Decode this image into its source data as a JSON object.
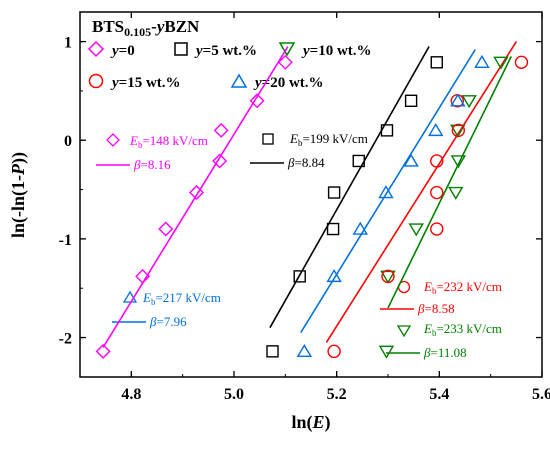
{
  "chart_data": {
    "type": "scatter",
    "title": {
      "base": "BTS",
      "sub": "0.105",
      "rest": "-",
      "var": "y",
      "tail": "BZN"
    },
    "xlabel": {
      "pre": "ln(",
      "var": "E",
      "post": ")"
    },
    "ylabel": {
      "pre": "ln(-ln(1-",
      "var": "P",
      "post": "))"
    },
    "xlim": [
      4.7,
      5.6
    ],
    "ylim": [
      -2.4,
      1.3
    ],
    "xticks": [
      "4.8",
      "5.0",
      "5.2",
      "5.4",
      "5.6"
    ],
    "xtick_values": [
      4.8,
      5.0,
      5.2,
      5.4,
      5.6
    ],
    "yticks": [
      "-2",
      "-1",
      "0",
      "1"
    ],
    "ytick_values": [
      -2,
      -1,
      0,
      1
    ],
    "grid": false,
    "legend_position": "top-left",
    "series": [
      {
        "name_var": "y",
        "name_rest": "=0",
        "marker": "diamond",
        "color": "#ff00ff",
        "points": [
          [
            4.745,
            -2.14
          ],
          [
            4.822,
            -1.38
          ],
          [
            4.867,
            -0.9
          ],
          [
            4.927,
            -0.53
          ],
          [
            4.972,
            -0.21
          ],
          [
            4.975,
            0.1
          ],
          [
            5.045,
            0.4
          ],
          [
            5.1,
            0.79
          ]
        ],
        "fit": [
          [
            4.745,
            -2.1
          ],
          [
            5.105,
            0.95
          ]
        ],
        "annotation": {
          "eb_var": "E",
          "eb_sub": "b",
          "eb_value": "=148 kV/cm",
          "beta_var": "β",
          "beta_value": "=8.16"
        }
      },
      {
        "name_var": "y",
        "name_rest": "=5 wt.%",
        "marker": "square",
        "color": "#000000",
        "points": [
          [
            5.075,
            -2.14
          ],
          [
            5.128,
            -1.38
          ],
          [
            5.193,
            -0.9
          ],
          [
            5.195,
            -0.53
          ],
          [
            5.243,
            -0.21
          ],
          [
            5.298,
            0.1
          ],
          [
            5.345,
            0.4
          ],
          [
            5.395,
            0.79
          ]
        ],
        "fit": [
          [
            5.07,
            -1.9
          ],
          [
            5.38,
            0.95
          ]
        ],
        "annotation": {
          "eb_var": "E",
          "eb_sub": "b",
          "eb_value": "=199 kV/cm",
          "beta_var": "β",
          "beta_value": "=8.84"
        }
      },
      {
        "name_var": "y",
        "name_rest": "=10 wt.%",
        "marker": "triangle-down",
        "color": "#008000",
        "points": [
          [
            5.297,
            -2.14
          ],
          [
            5.3,
            -1.38
          ],
          [
            5.355,
            -0.9
          ],
          [
            5.432,
            -0.53
          ],
          [
            5.437,
            -0.21
          ],
          [
            5.436,
            0.1
          ],
          [
            5.458,
            0.4
          ],
          [
            5.52,
            0.79
          ]
        ],
        "fit": [
          [
            5.3,
            -1.7
          ],
          [
            5.54,
            0.85
          ]
        ],
        "annotation": {
          "eb_var": "E",
          "eb_sub": "b",
          "eb_value": "=233 kV/cm",
          "beta_var": "β",
          "beta_value": "=11.08"
        }
      },
      {
        "name_var": "y",
        "name_rest": "=15 wt.%",
        "marker": "circle",
        "color": "#ff0000",
        "points": [
          [
            5.195,
            -2.14
          ],
          [
            5.3,
            -1.38
          ],
          [
            5.395,
            -0.9
          ],
          [
            5.395,
            -0.53
          ],
          [
            5.395,
            -0.21
          ],
          [
            5.437,
            0.1
          ],
          [
            5.435,
            0.4
          ],
          [
            5.56,
            0.79
          ]
        ],
        "fit": [
          [
            5.18,
            -2.05
          ],
          [
            5.55,
            1.0
          ]
        ],
        "annotation": {
          "eb_var": "E",
          "eb_sub": "b",
          "eb_value": "=232 kV/cm",
          "beta_var": "β",
          "beta_value": "=8.58"
        }
      },
      {
        "name_var": "y",
        "name_rest": "=20 wt.%",
        "marker": "triangle-up",
        "color": "#0070dd",
        "points": [
          [
            5.137,
            -2.14
          ],
          [
            5.195,
            -1.38
          ],
          [
            5.246,
            -0.9
          ],
          [
            5.296,
            -0.53
          ],
          [
            5.345,
            -0.21
          ],
          [
            5.393,
            0.1
          ],
          [
            5.436,
            0.4
          ],
          [
            5.483,
            0.79
          ]
        ],
        "fit": [
          [
            5.13,
            -1.95
          ],
          [
            5.47,
            0.92
          ]
        ],
        "annotation": {
          "eb_var": "E",
          "eb_sub": "b",
          "eb_value": "=217 kV/cm",
          "beta_var": "β",
          "beta_value": "=7.96"
        }
      }
    ]
  }
}
